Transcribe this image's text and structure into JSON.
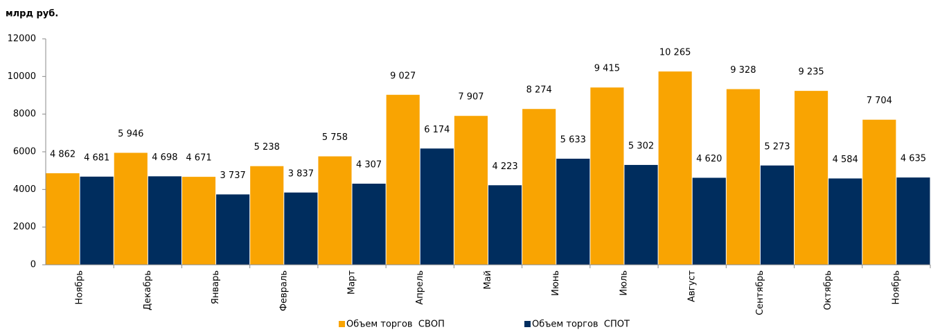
{
  "chart_data": {
    "type": "bar",
    "ylabel": "млрд руб.",
    "categories": [
      "Ноябрь",
      "Декабрь",
      "Январь",
      "Февраль",
      "Март",
      "Апрель",
      "Май",
      "Июнь",
      "Июль",
      "Август",
      "Сентябрь",
      "Октябрь",
      "Ноябрь"
    ],
    "series": [
      {
        "name": "Объем торгов  СВОП",
        "color": "#f9a402",
        "values": [
          4862,
          5946,
          4671,
          5238,
          5758,
          9027,
          7907,
          8274,
          9415,
          10265,
          9328,
          9235,
          7704
        ],
        "value_labels": [
          "4 862",
          "5 946",
          "4 671",
          "5 238",
          "5 758",
          "9 027",
          "7 907",
          "8 274",
          "9 415",
          "10 265",
          "9 328",
          "9 235",
          "7 704"
        ]
      },
      {
        "name": "Объем торгов  СПОТ",
        "color": "#002d5e",
        "values": [
          4681,
          4698,
          3737,
          3837,
          4307,
          6174,
          4223,
          5633,
          5302,
          4620,
          5273,
          4584,
          4635
        ],
        "value_labels": [
          "4 681",
          "4 698",
          "3 737",
          "3 837",
          "4 307",
          "6 174",
          "4 223",
          "5 633",
          "5 302",
          "4 620",
          "5 273",
          "4 584",
          "4 635"
        ]
      }
    ],
    "ylim": [
      0,
      12000
    ],
    "yticks": [
      0,
      2000,
      4000,
      6000,
      8000,
      10000,
      12000
    ],
    "legend": "bottom"
  }
}
